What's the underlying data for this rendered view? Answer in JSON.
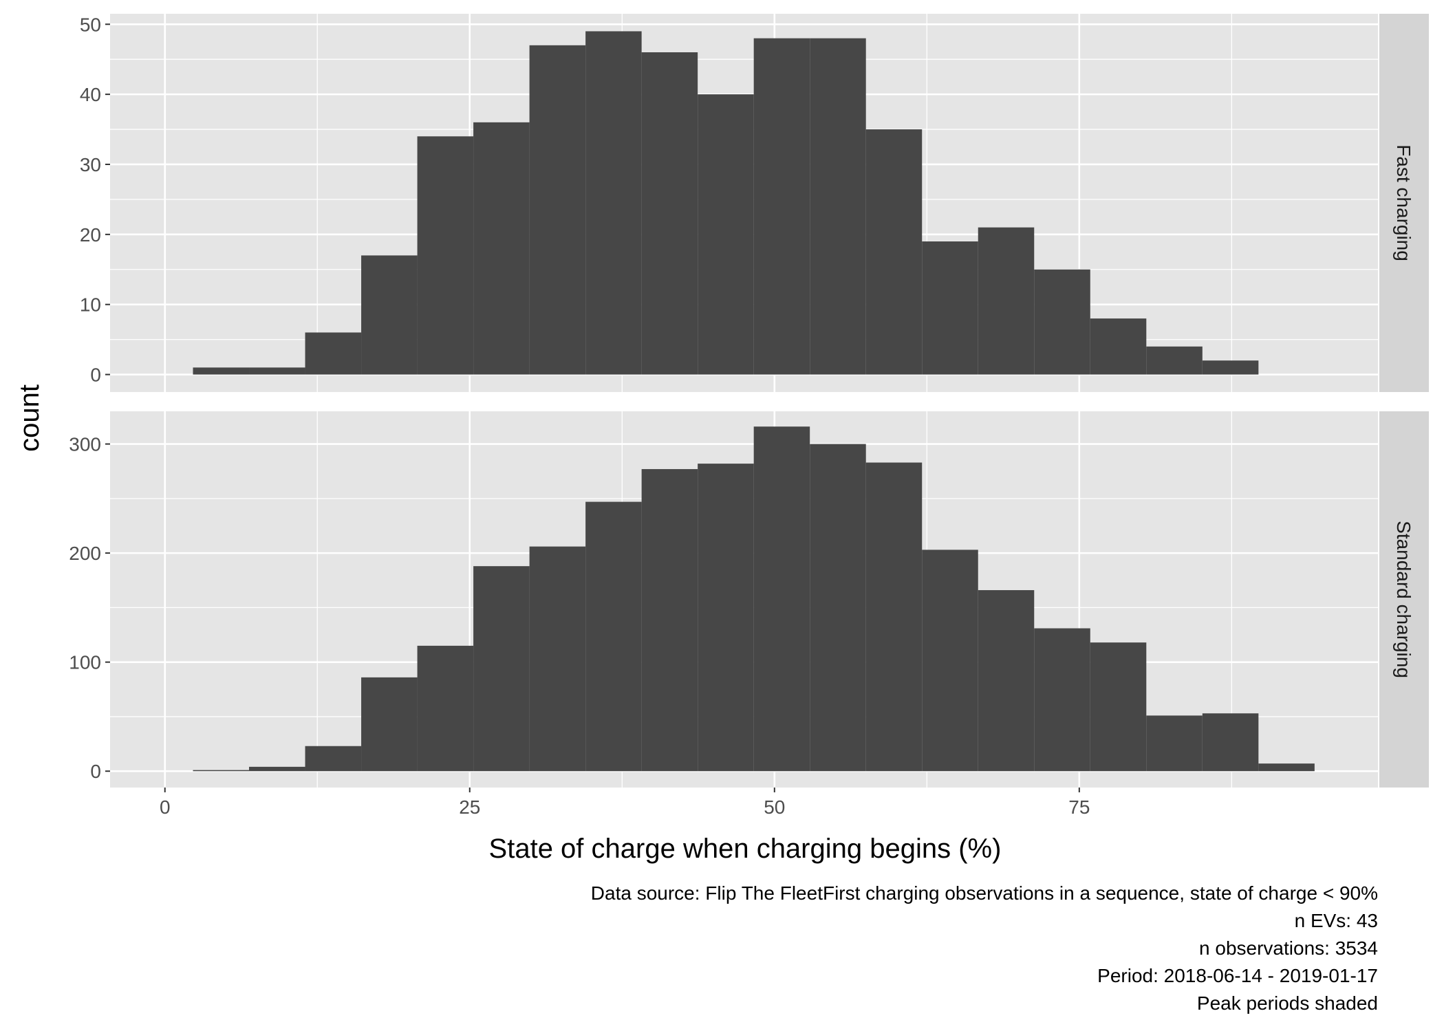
{
  "chart_data": {
    "type": "bar",
    "xlabel": "State of charge when charging begins (%)",
    "ylabel": "count",
    "xlim": [
      -4.5,
      99.5
    ],
    "x_ticks": [
      0,
      25,
      50,
      75
    ],
    "bin_width": 4.6,
    "grid": true,
    "facets": [
      {
        "name": "Fast charging",
        "ylim": [
          -2.5,
          51.5
        ],
        "y_ticks": [
          0,
          10,
          20,
          30,
          40,
          50
        ],
        "bins": [
          {
            "x0": 2.3,
            "x1": 6.9,
            "count": 1
          },
          {
            "x0": 6.9,
            "x1": 11.5,
            "count": 1
          },
          {
            "x0": 11.5,
            "x1": 16.1,
            "count": 6
          },
          {
            "x0": 16.1,
            "x1": 20.7,
            "count": 17
          },
          {
            "x0": 20.7,
            "x1": 25.3,
            "count": 34
          },
          {
            "x0": 25.3,
            "x1": 29.9,
            "count": 36
          },
          {
            "x0": 29.9,
            "x1": 34.5,
            "count": 47
          },
          {
            "x0": 34.5,
            "x1": 39.1,
            "count": 49
          },
          {
            "x0": 39.1,
            "x1": 43.7,
            "count": 46
          },
          {
            "x0": 43.7,
            "x1": 48.3,
            "count": 40
          },
          {
            "x0": 48.3,
            "x1": 52.9,
            "count": 48
          },
          {
            "x0": 52.9,
            "x1": 57.5,
            "count": 48
          },
          {
            "x0": 57.5,
            "x1": 62.1,
            "count": 35
          },
          {
            "x0": 62.1,
            "x1": 66.7,
            "count": 19
          },
          {
            "x0": 66.7,
            "x1": 71.3,
            "count": 21
          },
          {
            "x0": 71.3,
            "x1": 75.9,
            "count": 15
          },
          {
            "x0": 75.9,
            "x1": 80.5,
            "count": 8
          },
          {
            "x0": 80.5,
            "x1": 85.1,
            "count": 4
          },
          {
            "x0": 85.1,
            "x1": 89.7,
            "count": 2
          }
        ]
      },
      {
        "name": "Standard charging",
        "ylim": [
          -15,
          330
        ],
        "y_ticks": [
          0,
          100,
          200,
          300
        ],
        "bins": [
          {
            "x0": 2.3,
            "x1": 6.9,
            "count": 1
          },
          {
            "x0": 6.9,
            "x1": 11.5,
            "count": 4
          },
          {
            "x0": 11.5,
            "x1": 16.1,
            "count": 23
          },
          {
            "x0": 16.1,
            "x1": 20.7,
            "count": 86
          },
          {
            "x0": 20.7,
            "x1": 25.3,
            "count": 115
          },
          {
            "x0": 25.3,
            "x1": 29.9,
            "count": 188
          },
          {
            "x0": 29.9,
            "x1": 34.5,
            "count": 206
          },
          {
            "x0": 34.5,
            "x1": 39.1,
            "count": 247
          },
          {
            "x0": 39.1,
            "x1": 43.7,
            "count": 277
          },
          {
            "x0": 43.7,
            "x1": 48.3,
            "count": 282
          },
          {
            "x0": 48.3,
            "x1": 52.9,
            "count": 316
          },
          {
            "x0": 52.9,
            "x1": 57.5,
            "count": 300
          },
          {
            "x0": 57.5,
            "x1": 62.1,
            "count": 283
          },
          {
            "x0": 62.1,
            "x1": 66.7,
            "count": 203
          },
          {
            "x0": 66.7,
            "x1": 71.3,
            "count": 166
          },
          {
            "x0": 71.3,
            "x1": 75.9,
            "count": 131
          },
          {
            "x0": 75.9,
            "x1": 80.5,
            "count": 118
          },
          {
            "x0": 80.5,
            "x1": 85.1,
            "count": 51
          },
          {
            "x0": 85.1,
            "x1": 89.7,
            "count": 53
          },
          {
            "x0": 89.7,
            "x1": 94.3,
            "count": 7
          }
        ]
      }
    ],
    "caption_lines": [
      "Data source: Flip The FleetFirst charging observations in a sequence, state of charge < 90%",
      "n EVs: 43",
      "n observations: 3534",
      "Period: 2018-06-14 - 2019-01-17",
      "Peak periods shaded"
    ],
    "colors": {
      "panel_background": "#e5e5e5",
      "grid_major": "#ffffff",
      "bar_fill": "#474747",
      "strip_background": "#d4d4d4"
    }
  }
}
